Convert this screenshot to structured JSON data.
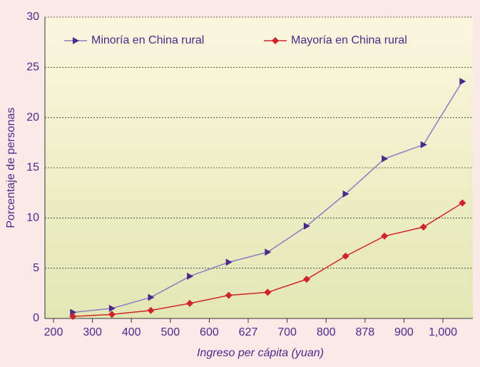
{
  "chart_data": {
    "type": "line",
    "xlabel": "Ingreso per cápita (yuan)",
    "ylabel": "Porcentaje de personas",
    "xtick_labels": [
      "200",
      "300",
      "400",
      "500",
      "600",
      "627",
      "700",
      "800",
      "878",
      "900",
      "1,000"
    ],
    "series": [
      {
        "name": "Minoría en China rural",
        "color": "#4b2a8a",
        "line_color": "#8a7bc4",
        "marker": "triangle",
        "values": [
          0.6,
          1.0,
          2.1,
          4.2,
          5.6,
          6.6,
          9.2,
          12.4,
          15.9,
          17.3,
          23.6
        ]
      },
      {
        "name": "Mayoría en China rural",
        "color": "#d2232a",
        "line_color": "#d2232a",
        "marker": "diamond",
        "values": [
          0.2,
          0.4,
          0.8,
          1.5,
          2.3,
          2.6,
          3.9,
          6.2,
          8.2,
          9.1,
          11.5
        ]
      }
    ],
    "ylim": [
      0,
      30
    ],
    "yticks": [
      0,
      5,
      10,
      15,
      20,
      25,
      30
    ],
    "grid": true,
    "legend": "top"
  }
}
